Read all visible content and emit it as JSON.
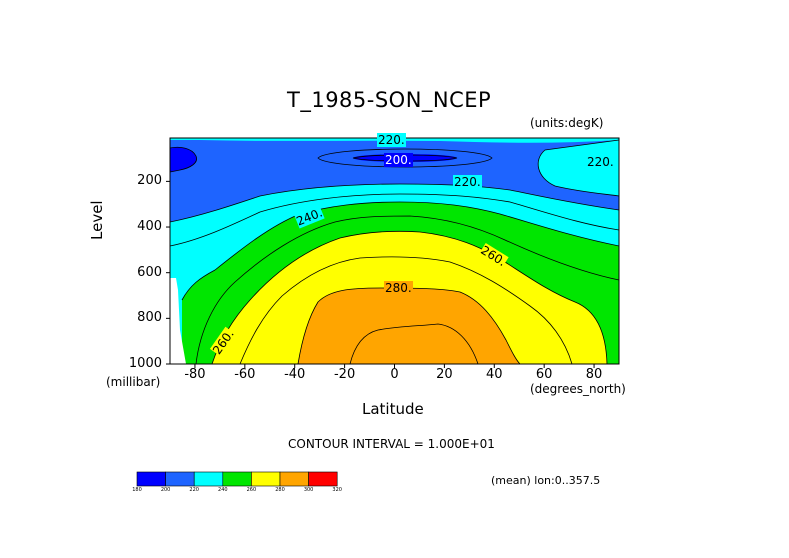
{
  "chart_data": {
    "type": "heatmap",
    "title": "T_1985-SON_NCEP",
    "units_note": "(units:degK)",
    "xlabel": "Latitude",
    "ylabel": "Level",
    "x_unit": "(degrees_north)",
    "y_unit": "(millibar)",
    "xlim": [
      -90,
      90
    ],
    "ylim": [
      1000,
      10
    ],
    "y_axis_reversed": true,
    "x_ticks": [
      -80,
      -60,
      -40,
      -20,
      0,
      20,
      40,
      60,
      80
    ],
    "y_ticks": [
      200,
      400,
      600,
      800,
      1000
    ],
    "contour_interval_text": "CONTOUR INTERVAL = 1.000E+01",
    "mean_note": "(mean) lon:0..357.5",
    "contour_labels": [
      "220.",
      "200.",
      "220.",
      "220.",
      "240.",
      "260.",
      "280.",
      "260."
    ],
    "colorbar": {
      "levels": [
        "180",
        "200",
        "220",
        "240",
        "260",
        "280",
        "300",
        "320"
      ],
      "colors": [
        "#0000ff",
        "#1e64ff",
        "#00ffff",
        "#00e600",
        "#ffff00",
        "#ffa500",
        "#ff0000"
      ]
    },
    "field_bands": [
      {
        "range": "<200",
        "color": "#0000ff",
        "where": "upper-left polar corner and small tropical core near 100 mb"
      },
      {
        "range": "200-220",
        "color": "#1e64ff",
        "where": "upper troposphere / tropopause region"
      },
      {
        "range": "220-240",
        "color": "#00ffff",
        "where": "mid-upper troposphere"
      },
      {
        "range": "240-260",
        "color": "#00e600",
        "where": "mid troposphere"
      },
      {
        "range": "260-280",
        "color": "#ffff00",
        "where": "lower troposphere"
      },
      {
        "range": "280-300",
        "color": "#ffa500",
        "where": "tropical boundary layer"
      }
    ]
  }
}
